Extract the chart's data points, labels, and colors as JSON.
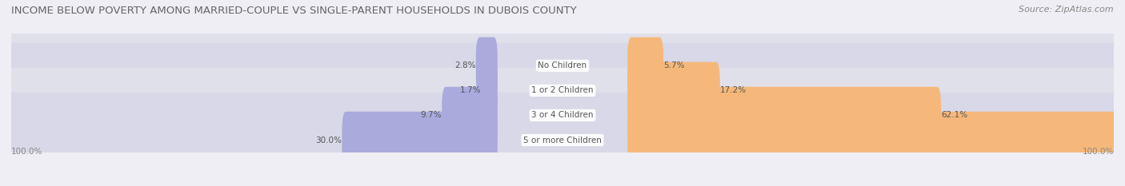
{
  "title": "INCOME BELOW POVERTY AMONG MARRIED-COUPLE VS SINGLE-PARENT HOUSEHOLDS IN DUBOIS COUNTY",
  "source": "Source: ZipAtlas.com",
  "categories": [
    "No Children",
    "1 or 2 Children",
    "3 or 4 Children",
    "5 or more Children"
  ],
  "married_values": [
    2.8,
    1.7,
    9.7,
    30.0
  ],
  "single_values": [
    5.7,
    17.2,
    62.1,
    100.0
  ],
  "married_color": "#aaaadd",
  "single_color": "#f5b87a",
  "row_bg_colors": [
    "#e0e0ea",
    "#d8d8e8"
  ],
  "title_fontsize": 9.5,
  "source_fontsize": 8,
  "label_fontsize": 7.5,
  "value_fontsize": 7.5,
  "legend_fontsize": 8,
  "max_value": 100.0,
  "axis_label_left": "100.0%",
  "axis_label_right": "100.0%",
  "background_color": "#eeeef4"
}
